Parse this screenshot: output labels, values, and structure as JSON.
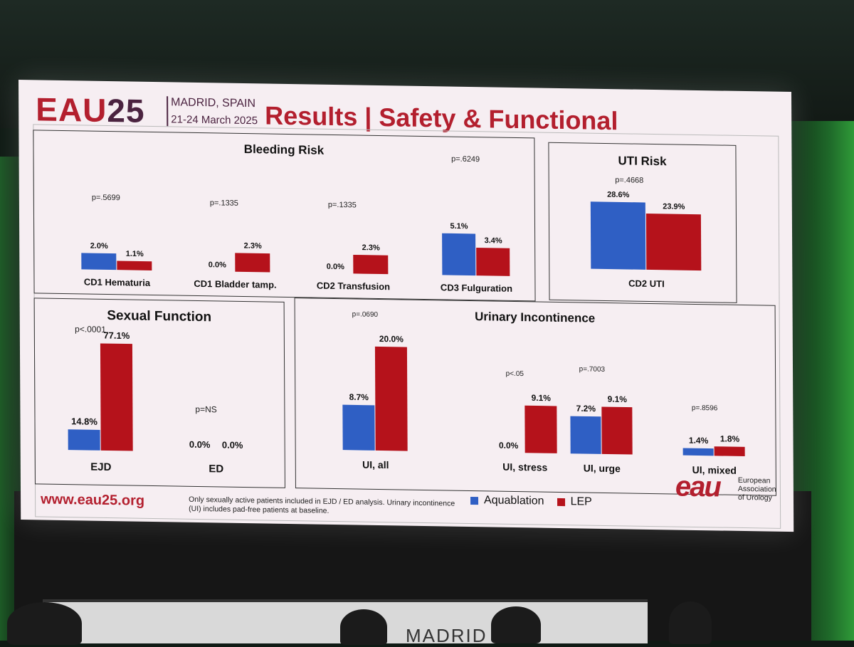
{
  "header": {
    "brand_prefix": "EAU",
    "brand_number": "25",
    "location": "MADRID, SPAIN",
    "dates": "21-24 March 2025",
    "title": "Results | Safety & Functional"
  },
  "colors": {
    "aquablation": "#2f5fc4",
    "lep": "#b5121b",
    "brand": "#b31f2e"
  },
  "chart_data": [
    {
      "type": "bar",
      "title": "Bleeding Risk",
      "categories": [
        "CD1 Hematuria",
        "CD1 Bladder tamp.",
        "CD2 Transfusion",
        "CD3 Fulguration"
      ],
      "series": [
        {
          "name": "Aquablation",
          "values": [
            2.0,
            0.0,
            0.0,
            5.1
          ]
        },
        {
          "name": "LEP",
          "values": [
            1.1,
            2.3,
            2.3,
            3.4
          ]
        }
      ],
      "labels": [
        [
          "2.0%",
          "1.1%"
        ],
        [
          "0.0%",
          "2.3%"
        ],
        [
          "0.0%",
          "2.3%"
        ],
        [
          "5.1%",
          "3.4%"
        ]
      ],
      "pvalues": [
        "p=.5699",
        "p=.1335",
        "p=.1335",
        "p=.6249"
      ]
    },
    {
      "type": "bar",
      "title": "UTI Risk",
      "categories": [
        "CD2 UTI"
      ],
      "series": [
        {
          "name": "Aquablation",
          "values": [
            28.6
          ]
        },
        {
          "name": "LEP",
          "values": [
            23.9
          ]
        }
      ],
      "labels": [
        [
          "28.6%",
          "23.9%"
        ]
      ],
      "pvalues": [
        "p=.4668"
      ]
    },
    {
      "type": "bar",
      "title": "Sexual Function",
      "categories": [
        "EJD",
        "ED"
      ],
      "series": [
        {
          "name": "Aquablation",
          "values": [
            14.8,
            0.0
          ]
        },
        {
          "name": "LEP",
          "values": [
            77.1,
            0.0
          ]
        }
      ],
      "labels": [
        [
          "14.8%",
          "77.1%"
        ],
        [
          "0.0%",
          "0.0%"
        ]
      ],
      "pvalues": [
        "p<.0001",
        "p=NS"
      ]
    },
    {
      "type": "bar",
      "title": "Urinary Incontinence",
      "categories": [
        "UI, all",
        "UI, stress",
        "UI, urge",
        "UI, mixed"
      ],
      "series": [
        {
          "name": "Aquablation",
          "values": [
            8.7,
            0.0,
            7.2,
            1.4
          ]
        },
        {
          "name": "LEP",
          "values": [
            20.0,
            9.1,
            9.1,
            1.8
          ]
        }
      ],
      "labels": [
        [
          "8.7%",
          "20.0%"
        ],
        [
          "0.0%",
          "9.1%"
        ],
        [
          "7.2%",
          "9.1%"
        ],
        [
          "1.4%",
          "1.8%"
        ]
      ],
      "pvalues": [
        "p=.0690",
        "p<.05",
        "p=.7003",
        "p=.8596"
      ]
    }
  ],
  "legend": {
    "aquablation": "Aquablation",
    "lep": "LEP"
  },
  "footer": {
    "url": "www.eau25.org",
    "note": "Only sexually active patients included in EJD / ED analysis. Urinary incontinence (UI) includes pad-free patients at baseline.",
    "logo_text": "eau",
    "org_line1": "European",
    "org_line2": "Association",
    "org_line3": "of Urology"
  },
  "room": {
    "bottom_screen_text": "MADRID"
  }
}
